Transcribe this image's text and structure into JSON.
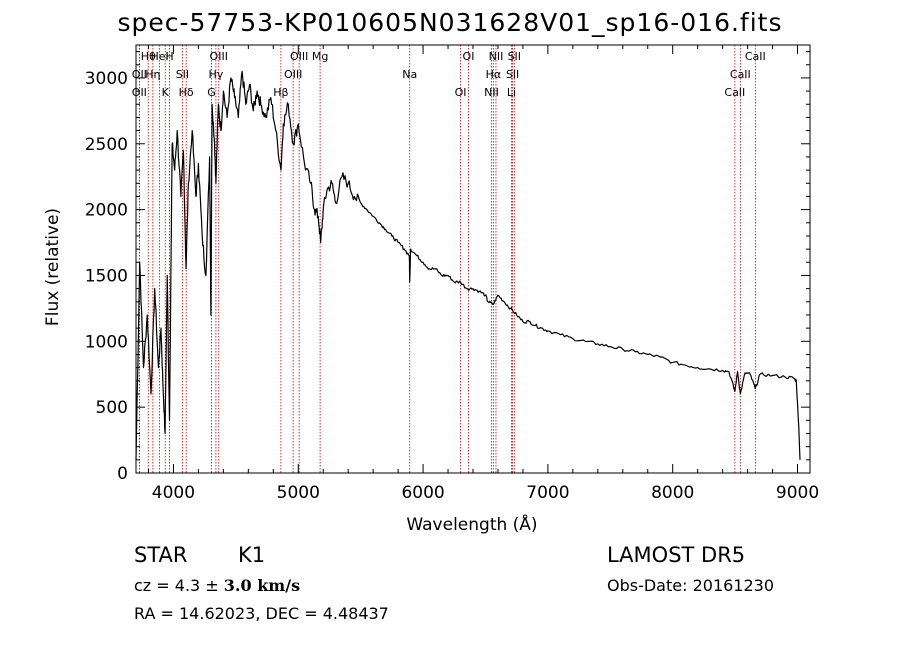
{
  "chart_data": {
    "type": "line",
    "title": "spec-57753-KP010605N031628V01_sp16-016.fits",
    "xlabel": "Wavelength (Å)",
    "ylabel": "Flux (relative)",
    "xlim": [
      3700,
      9100
    ],
    "ylim": [
      0,
      3250
    ],
    "xticks": [
      4000,
      5000,
      6000,
      7000,
      8000,
      9000
    ],
    "yticks": [
      0,
      500,
      1000,
      1500,
      2000,
      2500,
      3000
    ],
    "line_color": "#000000",
    "marker_color": "#cc0000",
    "grid": false,
    "series": [
      {
        "x": [
          3700,
          3730,
          3760,
          3790,
          3820,
          3850,
          3880,
          3900,
          3915,
          3933,
          3950,
          3968,
          3990,
          4010,
          4030,
          4060,
          4080,
          4101,
          4120,
          4150,
          4180,
          4200,
          4230,
          4260,
          4290,
          4300,
          4310,
          4330,
          4340,
          4360,
          4380,
          4400,
          4430,
          4460,
          4490,
          4520,
          4550,
          4580,
          4610,
          4640,
          4670,
          4700,
          4740,
          4780,
          4820,
          4861,
          4880,
          4920,
          4960,
          5000,
          5050,
          5100,
          5130,
          5160,
          5180,
          5200,
          5230,
          5270,
          5300,
          5350,
          5400,
          5450,
          5500,
          5550,
          5600,
          5650,
          5700,
          5750,
          5800,
          5850,
          5890,
          5893,
          5900,
          5950,
          6000,
          6050,
          6100,
          6150,
          6200,
          6250,
          6300,
          6350,
          6400,
          6450,
          6500,
          6520,
          6563,
          6600,
          6650,
          6700,
          6750,
          6800,
          6850,
          6900,
          6950,
          7000,
          7100,
          7200,
          7300,
          7400,
          7500,
          7600,
          7700,
          7800,
          7900,
          8000,
          8100,
          8200,
          8300,
          8400,
          8450,
          8498,
          8520,
          8542,
          8580,
          8620,
          8662,
          8700,
          8800,
          8900,
          8970,
          8990,
          9010,
          9020
        ],
        "y": [
          100,
          1600,
          800,
          1200,
          600,
          1400,
          800,
          1100,
          700,
          300,
          1500,
          400,
          2500,
          2300,
          2600,
          2100,
          2450,
          1550,
          2200,
          2600,
          2100,
          2350,
          1800,
          1500,
          2400,
          1200,
          2800,
          2500,
          2200,
          2800,
          2600,
          2900,
          2700,
          3000,
          2850,
          2700,
          3050,
          2800,
          2950,
          2750,
          2900,
          2800,
          2700,
          2850,
          2600,
          2300,
          2650,
          2800,
          2500,
          2650,
          2350,
          2200,
          2000,
          1950,
          1750,
          2000,
          2150,
          2200,
          2050,
          2250,
          2200,
          2100,
          2050,
          2000,
          1950,
          1900,
          1850,
          1800,
          1750,
          1700,
          1650,
          1450,
          1700,
          1650,
          1600,
          1550,
          1550,
          1500,
          1500,
          1450,
          1450,
          1400,
          1400,
          1380,
          1350,
          1300,
          1280,
          1350,
          1300,
          1250,
          1200,
          1150,
          1150,
          1120,
          1100,
          1080,
          1050,
          1020,
          1000,
          980,
          960,
          940,
          920,
          900,
          880,
          840,
          820,
          800,
          790,
          780,
          770,
          620,
          770,
          600,
          760,
          750,
          640,
          750,
          740,
          730,
          720,
          700,
          350,
          100
        ]
      }
    ],
    "lines": [
      {
        "label": "Hθ",
        "x": 3798
      },
      {
        "label": "OII",
        "x": 3727
      },
      {
        "label": "OII",
        "x": 3727
      },
      {
        "label": "HeI",
        "x": 3889
      },
      {
        "label": "Hη",
        "x": 3835
      },
      {
        "label": "K",
        "x": 3934
      },
      {
        "label": "H",
        "x": 3969
      },
      {
        "label": "SII",
        "x": 4072
      },
      {
        "label": "Hδ",
        "x": 4102
      },
      {
        "label": "OIII",
        "x": 4363
      },
      {
        "label": "Hγ",
        "x": 4340
      },
      {
        "label": "G",
        "x": 4305
      },
      {
        "label": "OIII",
        "x": 5007
      },
      {
        "label": "OIII",
        "x": 4959
      },
      {
        "label": "Hβ",
        "x": 4861
      },
      {
        "label": "Mg",
        "x": 5175
      },
      {
        "label": "Na",
        "x": 5893
      },
      {
        "label": "OI",
        "x": 6300
      },
      {
        "label": "OI",
        "x": 6364
      },
      {
        "label": "Hα",
        "x": 6563
      },
      {
        "label": "NII",
        "x": 6548
      },
      {
        "label": "NII",
        "x": 6584
      },
      {
        "label": "SII",
        "x": 6717
      },
      {
        "label": "Li",
        "x": 6708
      },
      {
        "label": "SII",
        "x": 6731
      },
      {
        "label": "CaII",
        "x": 8542
      },
      {
        "label": "CaII",
        "x": 8498
      },
      {
        "label": "CaII",
        "x": 8662
      }
    ]
  },
  "info": {
    "class_label": "STAR",
    "subclass_label": "K1",
    "survey": "LAMOST DR5",
    "cz_prefix": "cz = 4.3 ± ",
    "cz_error": "3.0 km/s",
    "obs_date": "Obs-Date: 20161230",
    "coords": "RA =  14.62023, DEC =   4.48437"
  }
}
